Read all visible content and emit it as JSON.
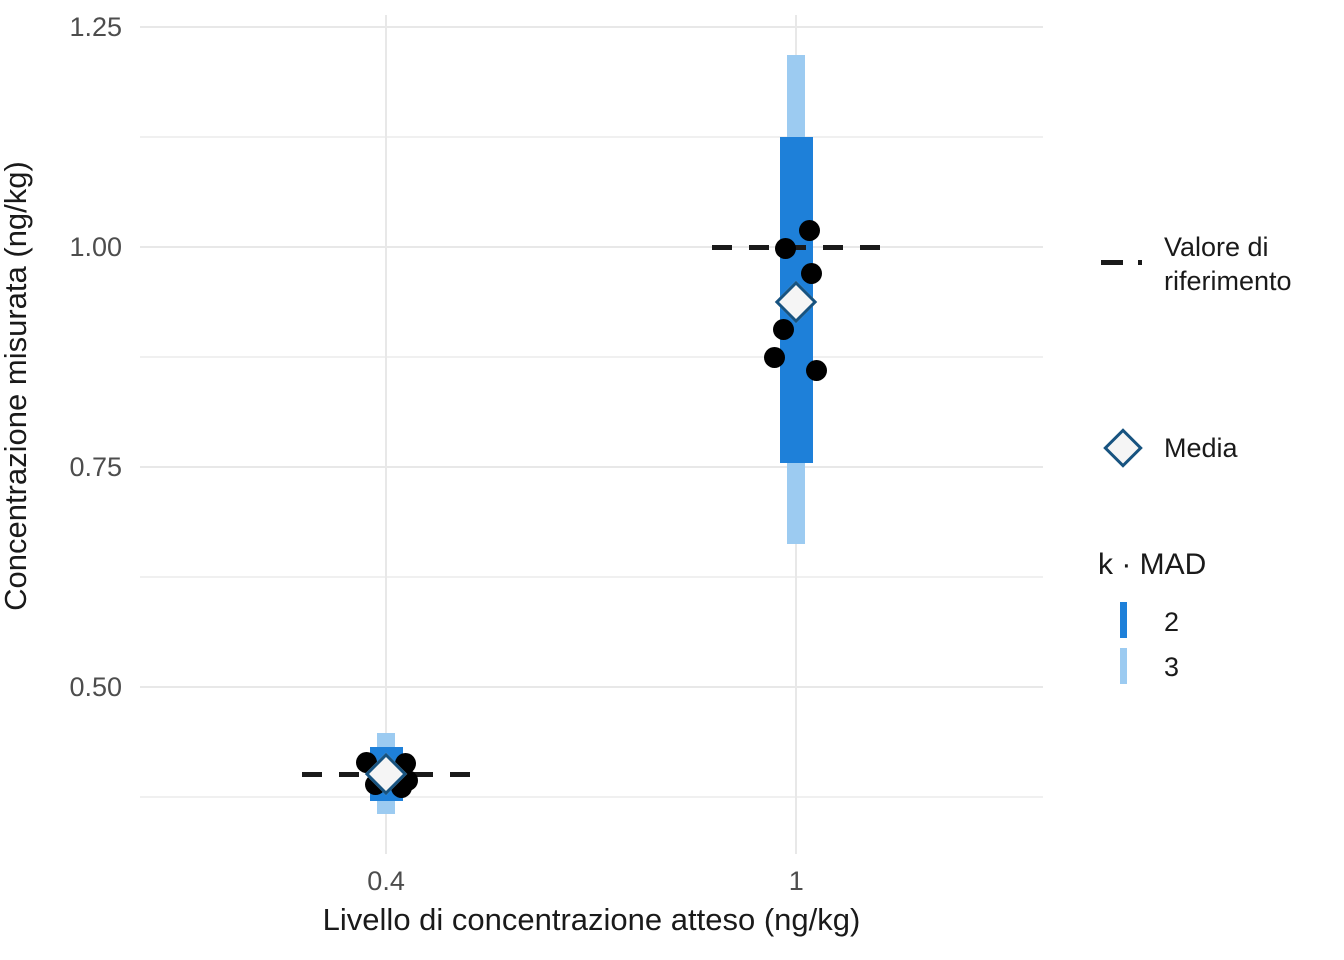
{
  "chart_data": {
    "type": "scatter",
    "title": "",
    "xlabel": "Livello di concentrazione atteso (ng/kg)",
    "ylabel": "Concentrazione misurata (ng/kg)",
    "xlim": [
      0.04,
      1.361
    ],
    "ylim": [
      0.31,
      1.264
    ],
    "grid": "on",
    "x_ticks": [
      {
        "value": 0.4,
        "label": "0.4"
      },
      {
        "value": 1.0,
        "label": "1"
      }
    ],
    "y_ticks": [
      {
        "value": 1.25,
        "label": "1.25"
      },
      {
        "value": 1.0,
        "label": "1.00"
      },
      {
        "value": 0.75,
        "label": "0.75"
      },
      {
        "value": 0.5,
        "label": "0.50"
      }
    ],
    "y_minor_gridlines": [
      1.125,
      0.875,
      0.625,
      0.375
    ],
    "reference_line_halfwidth_x": 0.123,
    "groups": [
      {
        "x": 0.4,
        "reference_value": 0.4,
        "mean": 0.401,
        "points": [
          {
            "dx": -0.028,
            "y": 0.414
          },
          {
            "dx": 0.028,
            "y": 0.413
          },
          {
            "dx": -0.005,
            "y": 0.402
          },
          {
            "dx": 0.031,
            "y": 0.394
          },
          {
            "dx": -0.016,
            "y": 0.389
          },
          {
            "dx": 0.023,
            "y": 0.386
          }
        ],
        "k2_band": [
          0.37,
          0.432
        ],
        "k3_band": [
          0.355,
          0.448
        ]
      },
      {
        "x": 1.0,
        "reference_value": 1.0,
        "mean": 0.938,
        "points": [
          {
            "dx": 0.019,
            "y": 1.019
          },
          {
            "dx": -0.016,
            "y": 0.998
          },
          {
            "dx": 0.023,
            "y": 0.97
          },
          {
            "dx": -0.018,
            "y": 0.906
          },
          {
            "dx": -0.032,
            "y": 0.874
          },
          {
            "dx": 0.029,
            "y": 0.86
          }
        ],
        "k2_band": [
          0.755,
          1.125
        ],
        "k3_band": [
          0.662,
          1.218
        ]
      }
    ],
    "legend_position": "right"
  },
  "legend": {
    "reference": {
      "label": "Valore di riferimento"
    },
    "mean": {
      "label": "Media"
    },
    "kmad": {
      "title": "k · MAD",
      "items": [
        {
          "k": "2"
        },
        {
          "k": "3"
        }
      ]
    }
  },
  "colors": {
    "k2_bar": "#1e80d9",
    "k3_bar": "#9ccbf1",
    "point": "#000000",
    "diamond_fill": "#f5f5f5",
    "diamond_stroke": "#175380",
    "reference_line": "#1a1a1a",
    "gridline_major": "#e8e8e8",
    "gridline_minor": "#f0f0f0",
    "tick_text": "#4d4d4d",
    "axis_title_text": "#1a1a1a"
  }
}
